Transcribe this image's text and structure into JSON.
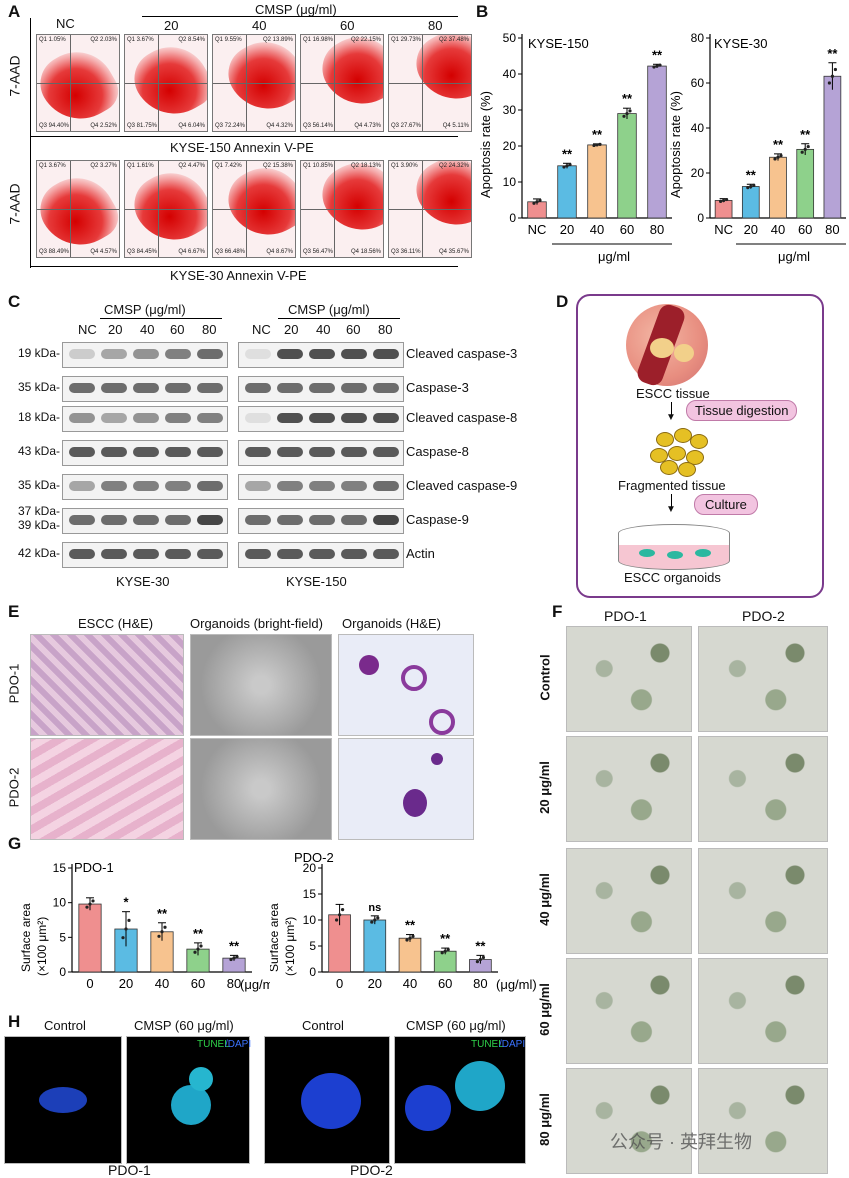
{
  "panels": {
    "A": "A",
    "B": "B",
    "C": "C",
    "D": "D",
    "E": "E",
    "F": "F",
    "G": "G",
    "H": "H"
  },
  "panelA": {
    "header": "CMSP (μg/ml)",
    "concs": [
      "NC",
      "20",
      "40",
      "60",
      "80"
    ],
    "yaxis": "7-AAD",
    "row1_xaxis": "KYSE-150 Annexin V-PE",
    "row2_xaxis": "KYSE-30  Annexin V-PE",
    "row1_quadrants": [
      [
        "Q1 1.05%",
        "Q2 2.03%",
        "Q3 94.40%",
        "Q4 2.52%"
      ],
      [
        "Q1 3.67%",
        "Q2 8.54%",
        "Q3 81.75%",
        "Q4 6.04%"
      ],
      [
        "Q1 9.55%",
        "Q2 13.89%",
        "Q3 72.24%",
        "Q4 4.32%"
      ],
      [
        "Q1 16.98%",
        "Q2 22.15%",
        "Q3 56.14%",
        "Q4 4.73%"
      ],
      [
        "Q1 29.73%",
        "Q2 37.48%",
        "Q3 27.67%",
        "Q4 5.11%"
      ]
    ],
    "row2_quadrants": [
      [
        "Q1 3.67%",
        "Q2 3.27%",
        "Q3 88.49%",
        "Q4 4.57%"
      ],
      [
        "Q1 1.61%",
        "Q2 4.47%",
        "Q3 84.45%",
        "Q4 6.67%"
      ],
      [
        "Q1 7.42%",
        "Q2 15.38%",
        "Q3 66.48%",
        "Q4 8.67%"
      ],
      [
        "Q1 10.85%",
        "Q2 18.13%",
        "Q3 56.47%",
        "Q4 18.56%"
      ],
      [
        "Q1 3.90%",
        "Q2 24.32%",
        "Q3 36.11%",
        "Q4 35.67%"
      ]
    ]
  },
  "chart_data": [
    {
      "type": "bar",
      "title": "KYSE-150",
      "ylabel": "Apoptosis rate (%)",
      "xlabel": "μg/ml",
      "categories": [
        "NC",
        "20",
        "40",
        "60",
        "80"
      ],
      "values": [
        4.5,
        14.5,
        20.3,
        29,
        42.2
      ],
      "errors": [
        0.8,
        0.7,
        0.3,
        1.5,
        0.5
      ],
      "sig": [
        "",
        "**",
        "**",
        "**",
        "**"
      ],
      "ylim": [
        0,
        50
      ],
      "yticks": [
        0,
        10,
        20,
        30,
        40,
        50
      ],
      "colors": [
        "#ef8f8f",
        "#5bbbe3",
        "#f7c38f",
        "#8ed18b",
        "#b5a3d6"
      ]
    },
    {
      "type": "bar",
      "title": "KYSE-30",
      "ylabel": "Apoptosis rate (%)",
      "xlabel": "μg/ml",
      "categories": [
        "NC",
        "20",
        "40",
        "60",
        "80"
      ],
      "values": [
        7.8,
        14,
        27,
        30.5,
        63
      ],
      "errors": [
        0.8,
        1,
        1.5,
        2.5,
        6
      ],
      "sig": [
        "",
        "**",
        "**",
        "**",
        "**"
      ],
      "ylim": [
        0,
        80
      ],
      "yticks": [
        0,
        20,
        40,
        60,
        80
      ],
      "colors": [
        "#ef8f8f",
        "#5bbbe3",
        "#f7c38f",
        "#8ed18b",
        "#b5a3d6"
      ]
    },
    {
      "type": "bar",
      "title": "PDO-1",
      "ylabel": "Surface area",
      "ylabel2": "(×100 μm²)",
      "xlabel": "(μg/ml)",
      "categories": [
        "0",
        "20",
        "40",
        "60",
        "80"
      ],
      "values": [
        9.8,
        6.2,
        5.8,
        3.3,
        2
      ],
      "errors": [
        0.9,
        2.5,
        1.3,
        0.9,
        0.4
      ],
      "sig": [
        "",
        "*",
        "**",
        "**",
        "**"
      ],
      "ylim": [
        0,
        15
      ],
      "yticks": [
        0,
        5,
        10,
        15
      ],
      "colors": [
        "#ef8f8f",
        "#5bbbe3",
        "#f7c38f",
        "#8ed18b",
        "#b5a3d6"
      ]
    },
    {
      "type": "bar",
      "title": "PDO-2",
      "ylabel": "Surface area",
      "ylabel2": "(×100 μm²)",
      "xlabel": "(μg/ml)",
      "categories": [
        "0",
        "20",
        "40",
        "60",
        "80"
      ],
      "values": [
        11,
        10,
        6.5,
        4,
        2.4
      ],
      "errors": [
        2,
        0.8,
        0.7,
        0.6,
        0.8
      ],
      "sig": [
        "",
        "ns",
        "**",
        "**",
        "**"
      ],
      "ylim": [
        0,
        20
      ],
      "yticks": [
        0,
        5,
        10,
        15,
        20
      ],
      "colors": [
        "#ef8f8f",
        "#5bbbe3",
        "#f7c38f",
        "#8ed18b",
        "#b5a3d6"
      ]
    }
  ],
  "panelC": {
    "header": "CMSP (μg/ml)",
    "lanes": [
      "NC",
      "20",
      "40",
      "60",
      "80"
    ],
    "rows": [
      {
        "kda": "19 kDa-",
        "name": "Cleaved caspase-3"
      },
      {
        "kda": "35 kDa-",
        "name": "Caspase-3"
      },
      {
        "kda": "18 kDa-",
        "name": "Cleaved caspase-8"
      },
      {
        "kda": "43 kDa-",
        "name": "Caspase-8"
      },
      {
        "kda": "35 kDa-",
        "name": "Cleaved caspase-9"
      },
      {
        "kda": "37 kDa-",
        "kda2": "39 kDa-",
        "name": "Caspase-9"
      },
      {
        "kda": "42 kDa-",
        "name": "Actin"
      }
    ],
    "left_cell": "KYSE-30",
    "right_cell": "KYSE-150"
  },
  "panelD": {
    "tissue": "ESCC tissue",
    "step1": "Tissue digestion",
    "fragmented": "Fragmented tissue",
    "step2": "Culture",
    "organoids": "ESCC organoids"
  },
  "panelE": {
    "cols": [
      "ESCC (H&E)",
      "Organoids (bright-field)",
      "Organoids (H&E)"
    ],
    "rows": [
      "PDO-1",
      "PDO-2"
    ]
  },
  "panelF": {
    "cols": [
      "PDO-1",
      "PDO-2"
    ],
    "rows": [
      "Control",
      "20 μg/ml",
      "40 μg/ml",
      "60 μg/ml",
      "80 μg/ml"
    ]
  },
  "panelH": {
    "control": "Control",
    "cmsp": "CMSP (60 μg/ml)",
    "stain1": "TUNEL",
    "stain2": "/DAPI",
    "pdo1": "PDO-1",
    "pdo2": "PDO-2"
  },
  "watermark": "公众号 · 英拜生物"
}
